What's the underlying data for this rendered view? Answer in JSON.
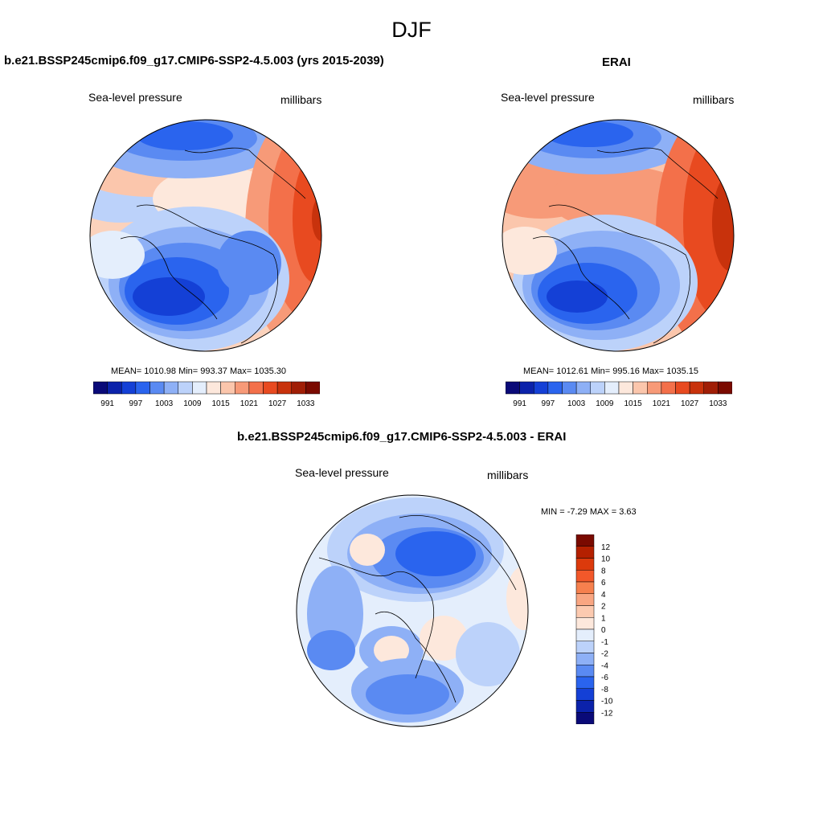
{
  "season": "DJF",
  "panels": [
    {
      "title": "b.e21.BSSP245cmip6.f09_g17.CMIP6-SSP2-4.5.003 (yrs 2015-2039)",
      "variable": "Sea-level pressure",
      "units": "millibars",
      "stats": "MEAN= 1010.98   Min= 993.37   Max= 1035.30"
    },
    {
      "title": "ERAI",
      "variable": "Sea-level pressure",
      "units": "millibars",
      "stats": "MEAN= 1012.61   Min= 995.16   Max= 1035.15"
    },
    {
      "title": "b.e21.BSSP245cmip6.f09_g17.CMIP6-SSP2-4.5.003 - ERAI",
      "variable": "Sea-level pressure",
      "units": "millibars",
      "stats": "MIN =  -7.29 MAX =   3.63"
    }
  ],
  "abs_colorbar": {
    "labels": [
      "991",
      "997",
      "1003",
      "1009",
      "1015",
      "1021",
      "1027",
      "1033"
    ],
    "colors": [
      "#0a0a78",
      "#0b22aa",
      "#1440d6",
      "#2a64ee",
      "#5a8af2",
      "#8eb0f6",
      "#bcd2fa",
      "#e4eefc",
      "#fde8dc",
      "#fbc6ac",
      "#f79a78",
      "#f3704a",
      "#e84a20",
      "#c8320c",
      "#a01e06",
      "#7a0a00"
    ]
  },
  "diff_colorbar": {
    "labels": [
      "12",
      "10",
      "8",
      "6",
      "4",
      "2",
      "1",
      "0",
      "-1",
      "-2",
      "-4",
      "-6",
      "-8",
      "-10",
      "-12"
    ],
    "colors": [
      "#7a0a00",
      "#b42000",
      "#dc3a0c",
      "#f2582a",
      "#f6804e",
      "#f9a682",
      "#fccab0",
      "#fde8dc",
      "#e4eefc",
      "#bcd2fa",
      "#8eb0f6",
      "#5a8af2",
      "#2a64ee",
      "#1440d6",
      "#0b22aa",
      "#0a0a78"
    ]
  }
}
